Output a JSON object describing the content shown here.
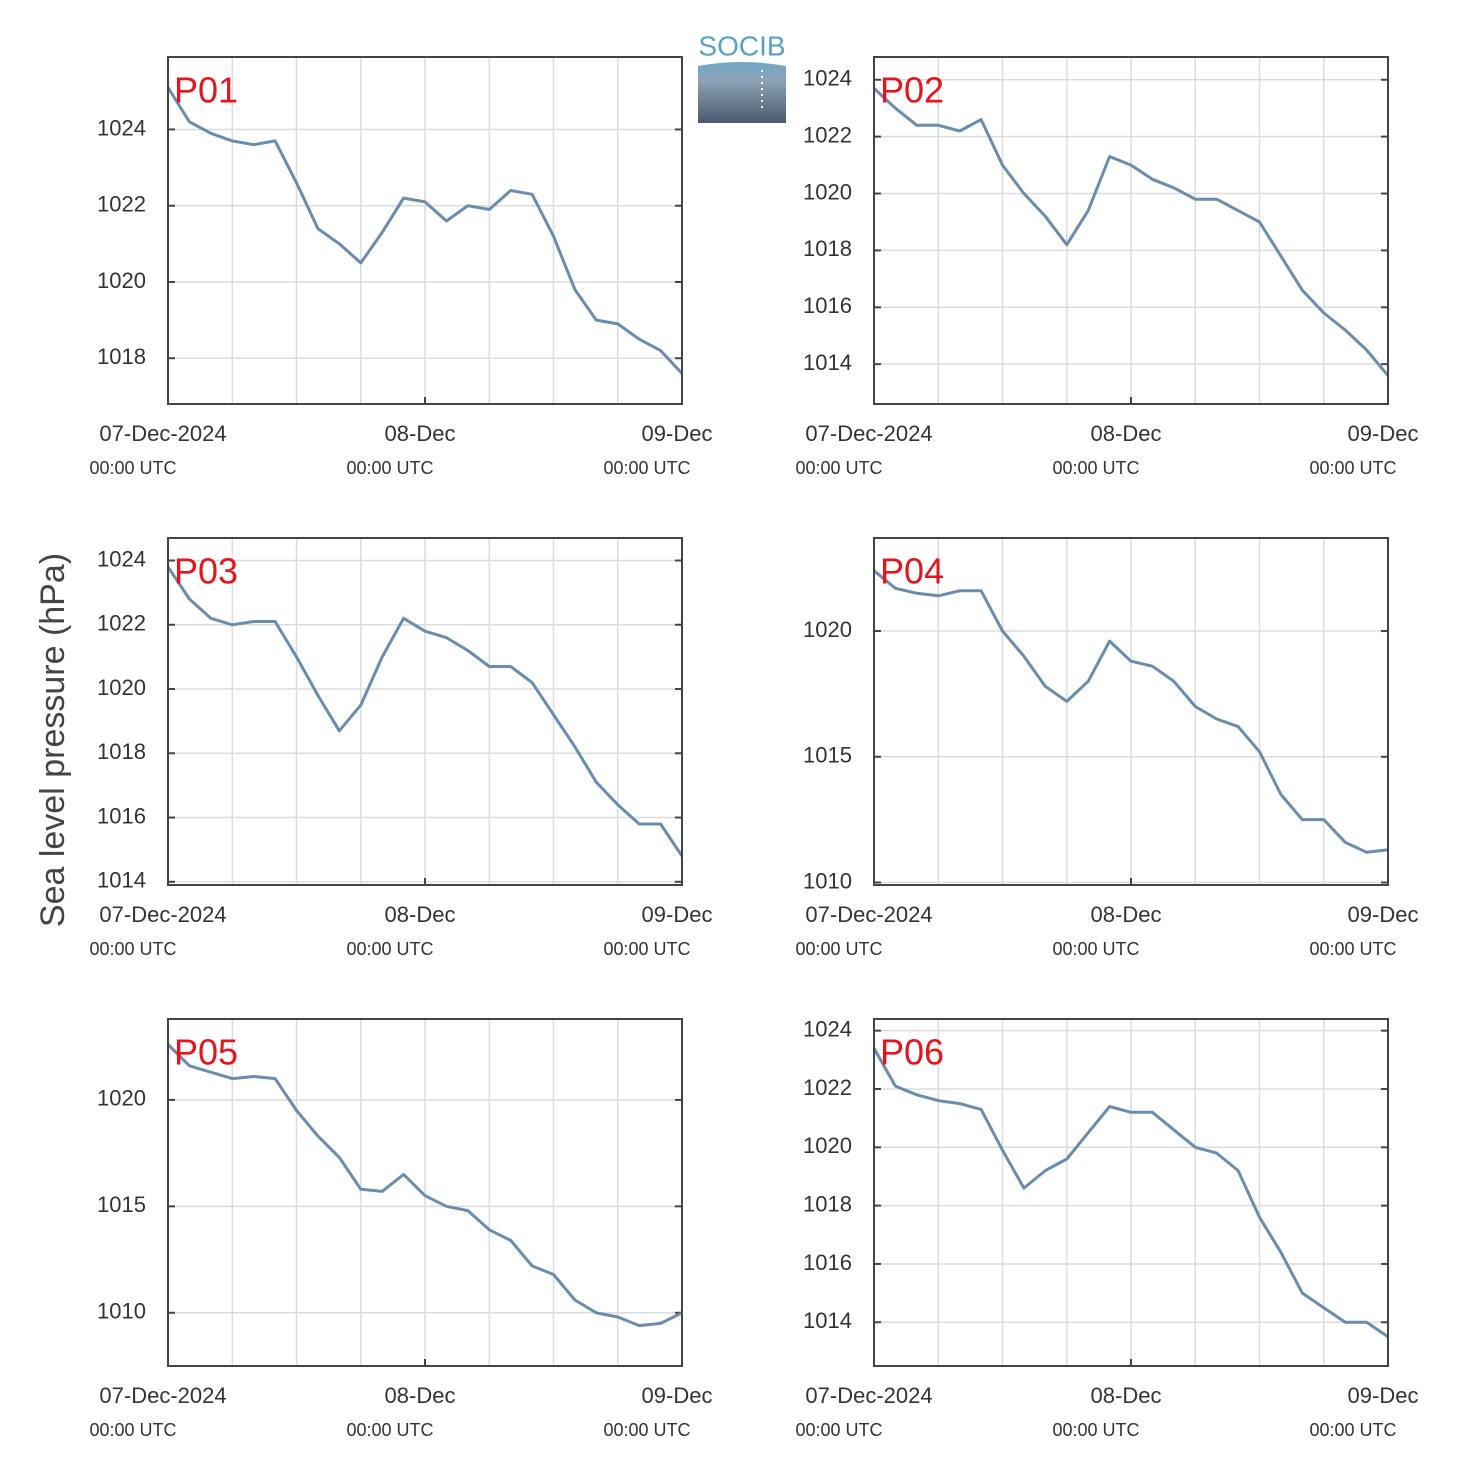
{
  "ylabel": "Sea level pressure (hPa)",
  "logo": "SOCIB",
  "chart_data": [
    {
      "type": "line",
      "title": "P01",
      "color": "#6a8caf",
      "grid": true,
      "xgrid_hours": 6,
      "xlim": [
        "2024-12-07T00:00",
        "2024-12-09T00:00"
      ],
      "xticks": [
        {
          "value": "2024-12-07T00:00",
          "label": "07-Dec-2024",
          "sublabel": "00:00 UTC"
        },
        {
          "value": "2024-12-08T00:00",
          "label": "08-Dec",
          "sublabel": "00:00 UTC"
        },
        {
          "value": "2024-12-09T00:00",
          "label": "09-Dec",
          "sublabel": "00:00 UTC"
        }
      ],
      "ylim": [
        1016.8,
        1025.9
      ],
      "yticks": [
        1018,
        1020,
        1022,
        1024
      ],
      "x": [
        "2024-12-07T00:00",
        "2024-12-07T02:00",
        "2024-12-07T04:00",
        "2024-12-07T06:00",
        "2024-12-07T08:00",
        "2024-12-07T10:00",
        "2024-12-07T12:00",
        "2024-12-07T14:00",
        "2024-12-07T16:00",
        "2024-12-07T18:00",
        "2024-12-07T20:00",
        "2024-12-07T22:00",
        "2024-12-08T00:00",
        "2024-12-08T02:00",
        "2024-12-08T04:00",
        "2024-12-08T06:00",
        "2024-12-08T08:00",
        "2024-12-08T10:00",
        "2024-12-08T12:00",
        "2024-12-08T14:00",
        "2024-12-08T16:00",
        "2024-12-08T18:00",
        "2024-12-08T20:00",
        "2024-12-08T22:00",
        "2024-12-09T00:00"
      ],
      "values": [
        1025.1,
        1024.2,
        1023.9,
        1023.7,
        1023.6,
        1023.7,
        1022.6,
        1021.4,
        1021.0,
        1020.5,
        1021.3,
        1022.2,
        1022.1,
        1021.6,
        1022.0,
        1021.9,
        1022.4,
        1022.3,
        1021.2,
        1019.8,
        1019.0,
        1018.9,
        1018.5,
        1018.2,
        1017.6
      ]
    },
    {
      "type": "line",
      "title": "P02",
      "color": "#6a8caf",
      "grid": true,
      "xgrid_hours": 6,
      "xlim": [
        "2024-12-07T00:00",
        "2024-12-09T00:00"
      ],
      "xticks": [
        {
          "value": "2024-12-07T00:00",
          "label": "07-Dec-2024",
          "sublabel": "00:00 UTC"
        },
        {
          "value": "2024-12-08T00:00",
          "label": "08-Dec",
          "sublabel": "00:00 UTC"
        },
        {
          "value": "2024-12-09T00:00",
          "label": "09-Dec",
          "sublabel": "00:00 UTC"
        }
      ],
      "ylim": [
        1012.6,
        1024.8
      ],
      "yticks": [
        1014,
        1016,
        1018,
        1020,
        1022,
        1024
      ],
      "x": [
        "2024-12-07T00:00",
        "2024-12-07T02:00",
        "2024-12-07T04:00",
        "2024-12-07T06:00",
        "2024-12-07T08:00",
        "2024-12-07T10:00",
        "2024-12-07T12:00",
        "2024-12-07T14:00",
        "2024-12-07T16:00",
        "2024-12-07T18:00",
        "2024-12-07T20:00",
        "2024-12-07T22:00",
        "2024-12-08T00:00",
        "2024-12-08T02:00",
        "2024-12-08T04:00",
        "2024-12-08T06:00",
        "2024-12-08T08:00",
        "2024-12-08T10:00",
        "2024-12-08T12:00",
        "2024-12-08T14:00",
        "2024-12-08T16:00",
        "2024-12-08T18:00",
        "2024-12-08T20:00",
        "2024-12-08T22:00",
        "2024-12-09T00:00"
      ],
      "values": [
        1023.7,
        1023.0,
        1022.4,
        1022.4,
        1022.2,
        1022.6,
        1021.0,
        1020.0,
        1019.2,
        1018.2,
        1019.4,
        1021.3,
        1021.0,
        1020.5,
        1020.2,
        1019.8,
        1019.8,
        1019.4,
        1019.0,
        1017.8,
        1016.6,
        1015.8,
        1015.2,
        1014.5,
        1013.6
      ]
    },
    {
      "type": "line",
      "title": "P03",
      "color": "#6a8caf",
      "grid": true,
      "xgrid_hours": 6,
      "xlim": [
        "2024-12-07T00:00",
        "2024-12-09T00:00"
      ],
      "xticks": [
        {
          "value": "2024-12-07T00:00",
          "label": "07-Dec-2024",
          "sublabel": "00:00 UTC"
        },
        {
          "value": "2024-12-08T00:00",
          "label": "08-Dec",
          "sublabel": "00:00 UTC"
        },
        {
          "value": "2024-12-09T00:00",
          "label": "09-Dec",
          "sublabel": "00:00 UTC"
        }
      ],
      "ylim": [
        1013.9,
        1024.7
      ],
      "yticks": [
        1014,
        1016,
        1018,
        1020,
        1022,
        1024
      ],
      "x": [
        "2024-12-07T00:00",
        "2024-12-07T02:00",
        "2024-12-07T04:00",
        "2024-12-07T06:00",
        "2024-12-07T08:00",
        "2024-12-07T10:00",
        "2024-12-07T12:00",
        "2024-12-07T14:00",
        "2024-12-07T16:00",
        "2024-12-07T18:00",
        "2024-12-07T20:00",
        "2024-12-07T22:00",
        "2024-12-08T00:00",
        "2024-12-08T02:00",
        "2024-12-08T04:00",
        "2024-12-08T06:00",
        "2024-12-08T08:00",
        "2024-12-08T10:00",
        "2024-12-08T12:00",
        "2024-12-08T14:00",
        "2024-12-08T16:00",
        "2024-12-08T18:00",
        "2024-12-08T20:00",
        "2024-12-08T22:00",
        "2024-12-09T00:00"
      ],
      "values": [
        1023.8,
        1022.8,
        1022.2,
        1022.0,
        1022.1,
        1022.1,
        1021.0,
        1019.8,
        1018.7,
        1019.5,
        1021.0,
        1022.2,
        1021.8,
        1021.6,
        1021.2,
        1020.7,
        1020.7,
        1020.2,
        1019.2,
        1018.2,
        1017.1,
        1016.4,
        1015.8,
        1015.8,
        1014.8
      ]
    },
    {
      "type": "line",
      "title": "P04",
      "color": "#6a8caf",
      "grid": true,
      "xgrid_hours": 6,
      "xlim": [
        "2024-12-07T00:00",
        "2024-12-09T00:00"
      ],
      "xticks": [
        {
          "value": "2024-12-07T00:00",
          "label": "07-Dec-2024",
          "sublabel": "00:00 UTC"
        },
        {
          "value": "2024-12-08T00:00",
          "label": "08-Dec",
          "sublabel": "00:00 UTC"
        },
        {
          "value": "2024-12-09T00:00",
          "label": "09-Dec",
          "sublabel": "00:00 UTC"
        }
      ],
      "ylim": [
        1009.9,
        1023.7
      ],
      "yticks": [
        1010,
        1015,
        1020
      ],
      "x": [
        "2024-12-07T00:00",
        "2024-12-07T02:00",
        "2024-12-07T04:00",
        "2024-12-07T06:00",
        "2024-12-07T08:00",
        "2024-12-07T10:00",
        "2024-12-07T12:00",
        "2024-12-07T14:00",
        "2024-12-07T16:00",
        "2024-12-07T18:00",
        "2024-12-07T20:00",
        "2024-12-07T22:00",
        "2024-12-08T00:00",
        "2024-12-08T02:00",
        "2024-12-08T04:00",
        "2024-12-08T06:00",
        "2024-12-08T08:00",
        "2024-12-08T10:00",
        "2024-12-08T12:00",
        "2024-12-08T14:00",
        "2024-12-08T16:00",
        "2024-12-08T18:00",
        "2024-12-08T20:00",
        "2024-12-08T22:00",
        "2024-12-09T00:00"
      ],
      "values": [
        1022.4,
        1021.7,
        1021.5,
        1021.4,
        1021.6,
        1021.6,
        1020.0,
        1019.0,
        1017.8,
        1017.2,
        1018.0,
        1019.6,
        1018.8,
        1018.6,
        1018.0,
        1017.0,
        1016.5,
        1016.2,
        1015.2,
        1013.5,
        1012.5,
        1012.5,
        1011.6,
        1011.2,
        1011.3
      ]
    },
    {
      "type": "line",
      "title": "P05",
      "color": "#6a8caf",
      "grid": true,
      "xgrid_hours": 6,
      "xlim": [
        "2024-12-07T00:00",
        "2024-12-09T00:00"
      ],
      "xticks": [
        {
          "value": "2024-12-07T00:00",
          "label": "07-Dec-2024",
          "sublabel": "00:00 UTC"
        },
        {
          "value": "2024-12-08T00:00",
          "label": "08-Dec",
          "sublabel": "00:00 UTC"
        },
        {
          "value": "2024-12-09T00:00",
          "label": "09-Dec",
          "sublabel": "00:00 UTC"
        }
      ],
      "ylim": [
        1007.5,
        1023.8
      ],
      "yticks": [
        1010,
        1015,
        1020
      ],
      "x": [
        "2024-12-07T00:00",
        "2024-12-07T02:00",
        "2024-12-07T04:00",
        "2024-12-07T06:00",
        "2024-12-07T08:00",
        "2024-12-07T10:00",
        "2024-12-07T12:00",
        "2024-12-07T14:00",
        "2024-12-07T16:00",
        "2024-12-07T18:00",
        "2024-12-07T20:00",
        "2024-12-07T22:00",
        "2024-12-08T00:00",
        "2024-12-08T02:00",
        "2024-12-08T04:00",
        "2024-12-08T06:00",
        "2024-12-08T08:00",
        "2024-12-08T10:00",
        "2024-12-08T12:00",
        "2024-12-08T14:00",
        "2024-12-08T16:00",
        "2024-12-08T18:00",
        "2024-12-08T20:00",
        "2024-12-08T22:00",
        "2024-12-09T00:00"
      ],
      "values": [
        1022.6,
        1021.6,
        1021.3,
        1021.0,
        1021.1,
        1021.0,
        1019.5,
        1018.3,
        1017.3,
        1015.8,
        1015.7,
        1016.5,
        1015.5,
        1015.0,
        1014.8,
        1013.9,
        1013.4,
        1012.2,
        1011.8,
        1010.6,
        1010.0,
        1009.8,
        1009.4,
        1009.5,
        1010.0
      ]
    },
    {
      "type": "line",
      "title": "P06",
      "color": "#6a8caf",
      "grid": true,
      "xgrid_hours": 6,
      "xlim": [
        "2024-12-07T00:00",
        "2024-12-09T00:00"
      ],
      "xticks": [
        {
          "value": "2024-12-07T00:00",
          "label": "07-Dec-2024",
          "sublabel": "00:00 UTC"
        },
        {
          "value": "2024-12-08T00:00",
          "label": "08-Dec",
          "sublabel": "00:00 UTC"
        },
        {
          "value": "2024-12-09T00:00",
          "label": "09-Dec",
          "sublabel": "00:00 UTC"
        }
      ],
      "ylim": [
        1012.5,
        1024.4
      ],
      "yticks": [
        1014,
        1016,
        1018,
        1020,
        1022,
        1024
      ],
      "x": [
        "2024-12-07T00:00",
        "2024-12-07T02:00",
        "2024-12-07T04:00",
        "2024-12-07T06:00",
        "2024-12-07T08:00",
        "2024-12-07T10:00",
        "2024-12-07T12:00",
        "2024-12-07T14:00",
        "2024-12-07T16:00",
        "2024-12-07T18:00",
        "2024-12-07T20:00",
        "2024-12-07T22:00",
        "2024-12-08T00:00",
        "2024-12-08T02:00",
        "2024-12-08T04:00",
        "2024-12-08T06:00",
        "2024-12-08T08:00",
        "2024-12-08T10:00",
        "2024-12-08T12:00",
        "2024-12-08T14:00",
        "2024-12-08T16:00",
        "2024-12-08T18:00",
        "2024-12-08T20:00",
        "2024-12-08T22:00",
        "2024-12-09T00:00"
      ],
      "values": [
        1023.4,
        1022.1,
        1021.8,
        1021.6,
        1021.5,
        1021.3,
        1019.9,
        1018.6,
        1019.2,
        1019.6,
        1020.5,
        1021.4,
        1021.2,
        1021.2,
        1020.6,
        1020.0,
        1019.8,
        1019.2,
        1017.6,
        1016.4,
        1015.0,
        1014.5,
        1014.0,
        1014.0,
        1013.5
      ]
    }
  ]
}
